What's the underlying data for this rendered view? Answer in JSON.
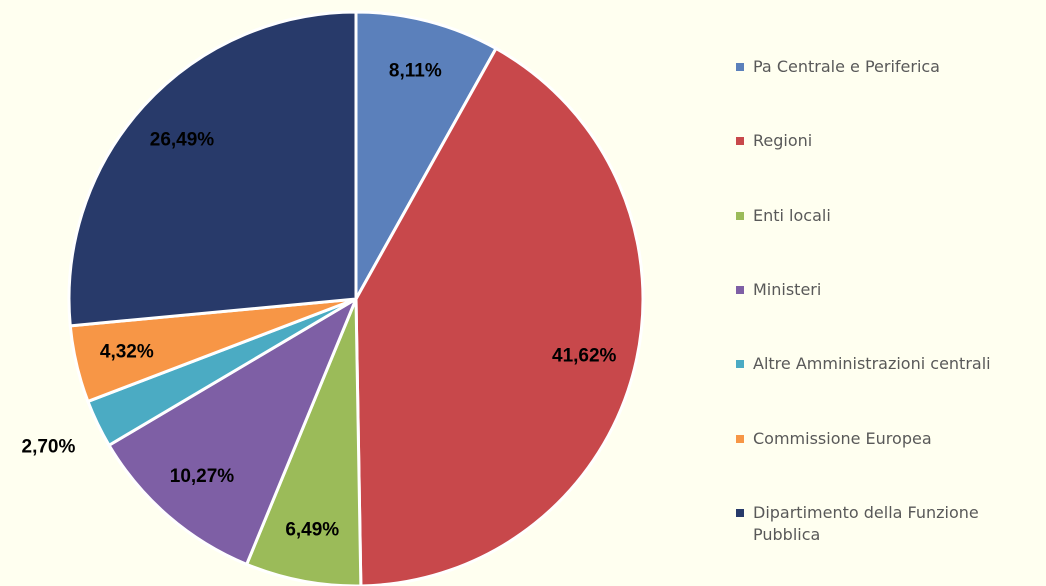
{
  "chart_data": {
    "type": "pie",
    "categories": [
      "Pa Centrale e Periferica",
      "Regioni",
      "Enti locali",
      "Ministeri",
      "Altre Amministrazioni centrali",
      "Commissione Europea",
      "Dipartimento della Funzione Pubblica"
    ],
    "values": [
      8.11,
      41.62,
      6.49,
      10.27,
      2.7,
      4.32,
      26.49
    ],
    "value_labels": [
      "8,11%",
      "41,62%",
      "6,49%",
      "10,27%",
      "2,70%",
      "4,32%",
      "26,49%"
    ],
    "colors": [
      "#5b80bb",
      "#c8484b",
      "#9bbb59",
      "#7e5fa5",
      "#4babc3",
      "#f79646",
      "#283a6a"
    ],
    "legend": "right"
  }
}
